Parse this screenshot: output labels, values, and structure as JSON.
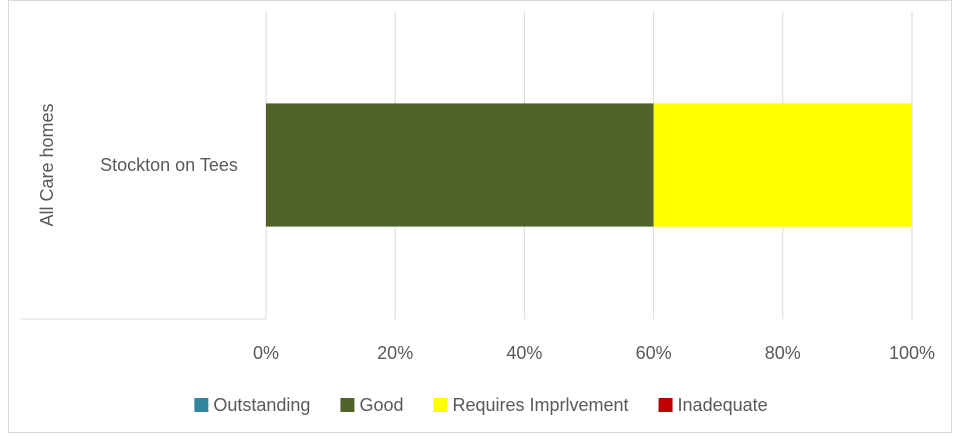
{
  "chart_data": {
    "type": "bar",
    "orientation": "horizontal",
    "stacked": true,
    "percent_stacked": true,
    "group_label": "All Care homes",
    "categories": [
      "Stockton on Tees"
    ],
    "series": [
      {
        "name": "Outstanding",
        "color": "#31859C",
        "values": [
          0
        ]
      },
      {
        "name": "Good",
        "color": "#4F6228",
        "values": [
          60
        ]
      },
      {
        "name": "Requires Imprlvement",
        "color": "#FFFF00",
        "values": [
          40
        ]
      },
      {
        "name": "Inadequate",
        "color": "#C00000",
        "values": [
          0
        ]
      }
    ],
    "xlim": [
      0,
      100
    ],
    "x_ticks": [
      "0%",
      "20%",
      "40%",
      "60%",
      "80%",
      "100%"
    ],
    "grid": true,
    "legend_position": "bottom"
  }
}
